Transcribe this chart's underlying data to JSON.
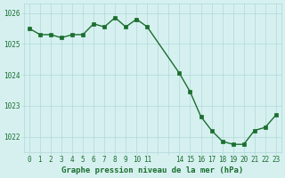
{
  "x": [
    0,
    1,
    2,
    3,
    4,
    5,
    6,
    7,
    8,
    9,
    10,
    11,
    14,
    15,
    16,
    17,
    18,
    19,
    20,
    21,
    22,
    23
  ],
  "y": [
    1025.5,
    1025.3,
    1025.3,
    1025.2,
    1025.3,
    1025.3,
    1025.65,
    1025.55,
    1025.85,
    1025.55,
    1025.8,
    1025.55,
    1024.05,
    1023.45,
    1022.65,
    1022.2,
    1021.85,
    1021.75,
    1021.75,
    1022.2,
    1022.3,
    1022.7
  ],
  "bg_color": "#d6f0f0",
  "line_color": "#1a6e2e",
  "marker_color": "#1a6e2e",
  "grid_color": "#b0d8d8",
  "axis_label_color": "#1a6e2e",
  "tick_label_color": "#1a6e2e",
  "ylabel_ticks": [
    1022,
    1023,
    1024,
    1025,
    1026
  ],
  "xlabel_ticks": [
    0,
    1,
    2,
    3,
    4,
    5,
    6,
    7,
    8,
    9,
    10,
    11,
    12,
    13,
    14,
    15,
    16,
    17,
    18,
    19,
    20,
    21,
    22,
    23
  ],
  "xlabel_labels": [
    "0",
    "1",
    "2",
    "3",
    "4",
    "5",
    "6",
    "7",
    "8",
    "9",
    "10",
    "11",
    "",
    "",
    "14",
    "15",
    "16",
    "17",
    "18",
    "19",
    "20",
    "21",
    "22",
    "23"
  ],
  "xlabel": "Graphe pression niveau de la mer (hPa)",
  "ylim": [
    1021.5,
    1026.3
  ],
  "xlim": [
    -0.5,
    23.5
  ]
}
